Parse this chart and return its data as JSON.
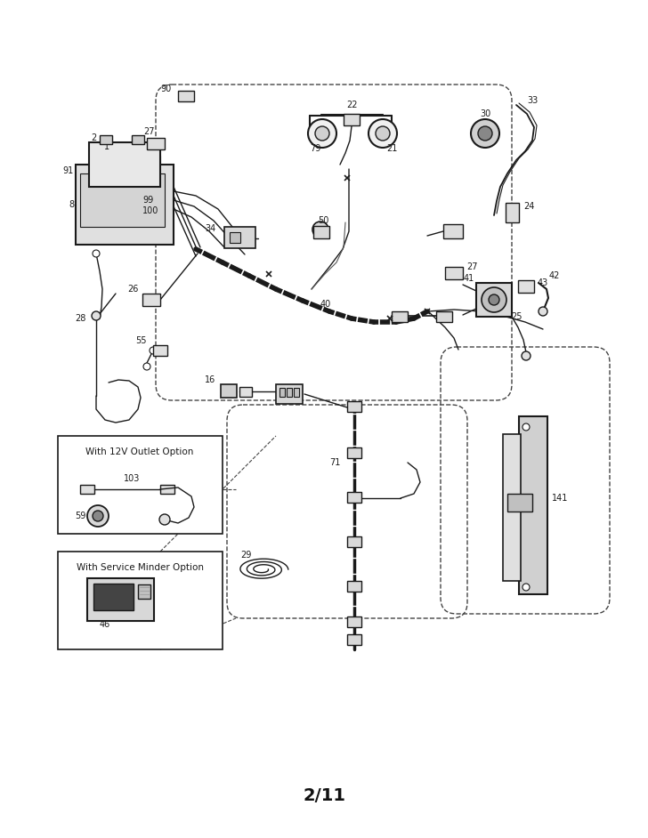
{
  "bg_color": "#ffffff",
  "line_color": "#1a1a1a",
  "dashed_color": "#444444",
  "page_label": "2/11",
  "fig_w": 7.28,
  "fig_h": 9.42,
  "dpi": 100
}
